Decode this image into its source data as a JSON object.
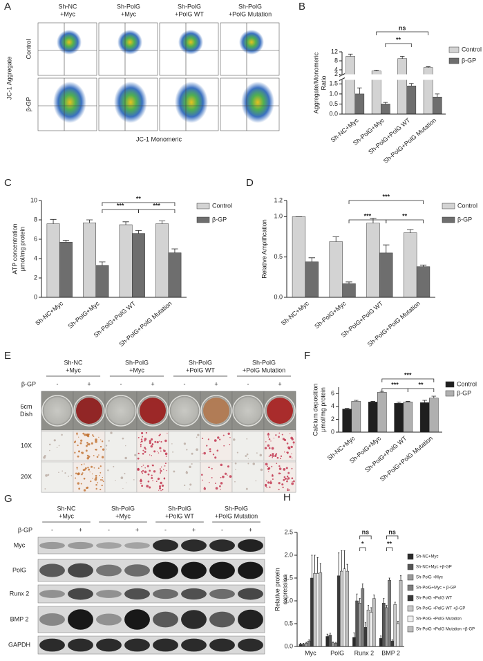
{
  "panel_a": {
    "label": "A",
    "columns": [
      [
        "Sh-NC",
        "+Myc"
      ],
      [
        "Sh-PolG",
        "+Myc"
      ],
      [
        "Sh-PolG",
        "+PolG WT"
      ],
      [
        "Sh-PolG",
        "+PolG Mutation"
      ]
    ],
    "rows": [
      "Control",
      "β-GP"
    ],
    "ylabel": "JC-1 Aggregate",
    "xlabel": "JC-1 Monomeric"
  },
  "panel_e": {
    "label": "E",
    "columns": [
      [
        "Sh-NC",
        "+Myc"
      ],
      [
        "Sh-PolG",
        "+Myc"
      ],
      [
        "Sh-PolG",
        "+PolG WT"
      ],
      [
        "Sh-PolG",
        "+PolG Mutation"
      ]
    ],
    "treatment": "β-GP",
    "signs": [
      "-",
      "+",
      "-",
      "+",
      "-",
      "+",
      "-",
      "+"
    ],
    "rows": [
      [
        "6cm",
        "Dish"
      ],
      [
        "10X"
      ],
      [
        "20X"
      ]
    ]
  },
  "panel_g": {
    "label": "G",
    "columns": [
      [
        "Sh-NC",
        "+Myc"
      ],
      [
        "Sh-PolG",
        "+Myc"
      ],
      [
        "Sh-PolG",
        "+PolG WT"
      ],
      [
        "Sh-PolG",
        "+PolG Mutation"
      ]
    ],
    "treatment": "β-GP",
    "signs": [
      "-",
      "+",
      "-",
      "+",
      "-",
      "+",
      "-",
      "+"
    ],
    "rows": [
      "Myc",
      "PolG",
      "Runx 2",
      "BMP 2",
      "GAPDH"
    ]
  },
  "chart_data": [
    {
      "label": "B",
      "type": "bar",
      "categories": [
        "Sh-NC+Myc",
        "Sh-PolG+Myc",
        "Sh-PolG+PolG WT",
        "Sh-PolG+PolG Mutation"
      ],
      "series": [
        {
          "name": "Control",
          "color": "#d3d3d3",
          "values": [
            10,
            3.5,
            9,
            5
          ],
          "errors": [
            1,
            0.3,
            1,
            0.4
          ]
        },
        {
          "name": "β-GP",
          "color": "#6e6e6e",
          "values": [
            1.0,
            0.5,
            1.4,
            0.85
          ],
          "errors": [
            0.3,
            0.08,
            0.12,
            0.15
          ]
        }
      ],
      "ylabel": [
        "Aggregate/Monomeric",
        "Ratio"
      ],
      "ylim_lower": [
        0,
        1.7
      ],
      "yticks_lower": [
        {
          "value": 0,
          "label": "0.0"
        },
        0.5,
        {
          "value": 1,
          "label": "1.0"
        },
        1.5
      ],
      "ylim_upper": [
        2,
        12
      ],
      "yticks_upper": [
        2,
        4,
        8,
        12
      ],
      "annotations": [
        "ns",
        "**"
      ],
      "legend": "upper right"
    },
    {
      "label": "C",
      "type": "bar",
      "categories": [
        "Sh-NC+Myc",
        "Sh-PolG+Myc",
        "Sh-PolG+PolG WT",
        "Sh-PolG+PolG Mutation"
      ],
      "series": [
        {
          "name": "Control",
          "color": "#d3d3d3",
          "values": [
            7.6,
            7.7,
            7.5,
            7.6
          ],
          "errors": [
            0.45,
            0.3,
            0.3,
            0.3
          ]
        },
        {
          "name": "β-GP",
          "color": "#6e6e6e",
          "values": [
            5.7,
            3.3,
            6.6,
            4.6
          ],
          "errors": [
            0.2,
            0.35,
            0.3,
            0.4
          ]
        }
      ],
      "ylabel": [
        "ATP concentration",
        "μmol/mg protein"
      ],
      "ylim": [
        0,
        10
      ],
      "yticks": [
        0,
        2,
        4,
        6,
        8,
        10
      ],
      "annotations": [
        "**",
        "***",
        "***"
      ],
      "legend": "upper right"
    },
    {
      "label": "D",
      "type": "bar",
      "categories": [
        "Sh-NC+Myc",
        "Sh-PolG+Myc",
        "Sh-PolG+PolG WT",
        "Sh-PolG+PolG Mutation"
      ],
      "series": [
        {
          "name": "Control",
          "color": "#d3d3d3",
          "values": [
            1.0,
            0.69,
            0.92,
            0.8
          ],
          "errors": [
            0,
            0.06,
            0.06,
            0.04
          ]
        },
        {
          "name": "β-GP",
          "color": "#6e6e6e",
          "values": [
            0.44,
            0.17,
            0.55,
            0.38
          ],
          "errors": [
            0.05,
            0.02,
            0.1,
            0.02
          ]
        }
      ],
      "ylabel": [
        "Relative Amplification"
      ],
      "ylim": [
        0,
        1.2
      ],
      "yticks": [
        {
          "value": 0,
          "label": "0.0"
        },
        0.5,
        {
          "value": 1,
          "label": "1.0"
        },
        1.2
      ],
      "annotations": [
        "***",
        "***",
        "**"
      ],
      "legend": "upper right"
    },
    {
      "label": "F",
      "type": "bar",
      "categories": [
        "Sh-NC+Myc",
        "Sh-PolG+Myc",
        "Sh-PolG+PolG WT",
        "Sh-PolG+PolG Mutation"
      ],
      "series": [
        {
          "name": "Control",
          "color": "#1f1f1f",
          "values": [
            3.6,
            4.7,
            4.5,
            4.6
          ],
          "errors": [
            0.1,
            0.1,
            0.2,
            0.35
          ]
        },
        {
          "name": "β-GP",
          "color": "#b0b0b0",
          "values": [
            4.8,
            6.2,
            4.7,
            5.3
          ],
          "errors": [
            0.15,
            0.15,
            0.1,
            0.3
          ]
        }
      ],
      "ylabel": [
        "Calcium deposition",
        "μmol/mg protein"
      ],
      "ylim": [
        0,
        7
      ],
      "yticks": [
        0,
        2,
        4,
        6
      ],
      "annotations": [
        "***",
        "***",
        "**"
      ],
      "legend": "upper right"
    },
    {
      "label": "H",
      "type": "bar",
      "categories": [
        "Myc",
        "PolG",
        "Runx 2",
        "BMP 2"
      ],
      "series": [
        {
          "name": "Sh-NC+Myc",
          "color": "#2b2b2b",
          "values": [
            0.05,
            0.22,
            0.2,
            0.18
          ],
          "errors": [
            0.02,
            0.05,
            0.1,
            0.05
          ]
        },
        {
          "name": "Sh-NC+Myc +β-GP",
          "color": "#555555",
          "values": [
            0.05,
            0.25,
            1.0,
            0.95
          ],
          "errors": [
            0.02,
            0.04,
            0.15,
            0.1
          ]
        },
        {
          "name": "Sh-PolG +Myc",
          "color": "#9a9a9a",
          "values": [
            0.07,
            0.08,
            0.95,
            0.85
          ],
          "errors": [
            0.02,
            0.02,
            0.1,
            0.05
          ]
        },
        {
          "name": "Sh-PolG+Myc + β-GP",
          "color": "#7d7d7d",
          "values": [
            0.12,
            0.07,
            1.27,
            1.45
          ],
          "errors": [
            0.03,
            0.02,
            0.1,
            0.05
          ]
        },
        {
          "name": "Sh-PolG +PolG WT",
          "color": "#3a3a3a",
          "values": [
            1.5,
            1.55,
            0.42,
            0.12
          ],
          "errors": [
            0.5,
            0.5,
            0.1,
            0.03
          ]
        },
        {
          "name": "Sh-PolG +PolG WT +β-GP",
          "color": "#c8c8c8",
          "values": [
            1.6,
            1.65,
            0.8,
            0.92
          ],
          "errors": [
            0.4,
            0.45,
            0.1,
            0.05
          ]
        },
        {
          "name": "Sh-PolG +PolG Mutation",
          "color": "#f0f0f0",
          "values": [
            1.6,
            1.7,
            0.75,
            0.5
          ],
          "errors": [
            0.35,
            0.4,
            0.1,
            0.05
          ]
        },
        {
          "name": "Sh-PolG +PolG Mutation +β-GP",
          "color": "#bdbdbd",
          "values": [
            1.62,
            1.65,
            1.05,
            1.45
          ],
          "errors": [
            0.2,
            0.15,
            0.08,
            0.1
          ]
        }
      ],
      "ylabel": [
        "Relative protein",
        "expression"
      ],
      "ylim": [
        0,
        2.5
      ],
      "yticks": [
        {
          "value": 0,
          "label": "0.0"
        },
        0.5,
        {
          "value": 1,
          "label": "1.0"
        },
        1.5,
        {
          "value": 2,
          "label": "2.0"
        },
        2.5
      ],
      "annotations": [
        "ns",
        "*",
        "ns",
        "**"
      ],
      "legend": "right"
    }
  ]
}
